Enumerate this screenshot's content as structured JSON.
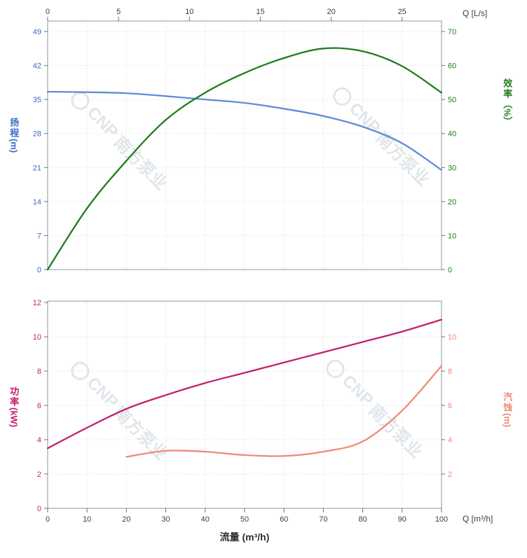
{
  "watermark": {
    "logo_text": "CNP",
    "brand_text": "南方泵业",
    "color": "#c9d2da"
  },
  "chart_data": {
    "type": "line",
    "title": "",
    "x_axis": {
      "label": "流量 (m³/h)",
      "unit_label_top": "Q [L/s]",
      "unit_label_bottom": "Q [m³/h]",
      "min": 0,
      "max": 100,
      "ticks_bottom": [
        0,
        10,
        20,
        30,
        40,
        50,
        60,
        70,
        80,
        90,
        100
      ],
      "ticks_top": [
        0,
        5,
        10,
        15,
        20,
        25
      ],
      "ls_to_m3h": 3.6
    },
    "panels": [
      {
        "name": "head-efficiency-panel",
        "left_axis": {
          "title": "扬程",
          "unit": "(m)",
          "color": "#3d6cc4",
          "min": 0,
          "max": 49,
          "ticks": [
            0,
            7,
            14,
            21,
            28,
            35,
            42,
            49
          ]
        },
        "right_axis": {
          "title": "效率",
          "unit": "（%）",
          "color": "#1e7d1e",
          "min": 0,
          "max": 70,
          "ticks": [
            0,
            10,
            20,
            30,
            40,
            50,
            60,
            70
          ]
        },
        "series": [
          {
            "name": "head",
            "axis": "left",
            "color": "#5e8cd8",
            "x": [
              0,
              10,
              20,
              30,
              40,
              50,
              60,
              70,
              80,
              90,
              100
            ],
            "y": [
              36.6,
              36.5,
              36.3,
              35.7,
              35.0,
              34.3,
              33.1,
              31.6,
              29.4,
              26.0,
              20.5
            ]
          },
          {
            "name": "efficiency",
            "axis": "right",
            "color": "#1e7d1e",
            "x": [
              0,
              10,
              20,
              30,
              40,
              50,
              60,
              70,
              80,
              90,
              100
            ],
            "y": [
              0,
              18,
              32,
              44,
              52,
              57.8,
              62.2,
              65,
              64.2,
              59.8,
              52
            ]
          }
        ]
      },
      {
        "name": "power-npsh-panel",
        "left_axis": {
          "title": "功率",
          "unit": "(kW)",
          "color": "#c2206e",
          "min": 0,
          "max": 12,
          "ticks": [
            0,
            2,
            4,
            6,
            8,
            10,
            12
          ]
        },
        "right_axis": {
          "title": "汽蚀",
          "unit": "(m)",
          "color": "#ef8a78",
          "min": 0,
          "max": 12,
          "ticks": [
            2,
            4,
            6,
            8,
            10
          ]
        },
        "series": [
          {
            "name": "power",
            "axis": "left",
            "color": "#c2206e",
            "x": [
              0,
              10,
              20,
              30,
              40,
              50,
              60,
              70,
              80,
              90,
              100
            ],
            "y": [
              3.5,
              4.7,
              5.8,
              6.6,
              7.3,
              7.9,
              8.5,
              9.1,
              9.7,
              10.3,
              11.0
            ]
          },
          {
            "name": "npsh",
            "axis": "right",
            "color": "#ef8a78",
            "x": [
              20,
              30,
              40,
              50,
              60,
              70,
              80,
              90,
              100
            ],
            "y": [
              3.0,
              3.35,
              3.3,
              3.1,
              3.05,
              3.3,
              3.9,
              5.7,
              8.3
            ]
          }
        ]
      }
    ]
  }
}
